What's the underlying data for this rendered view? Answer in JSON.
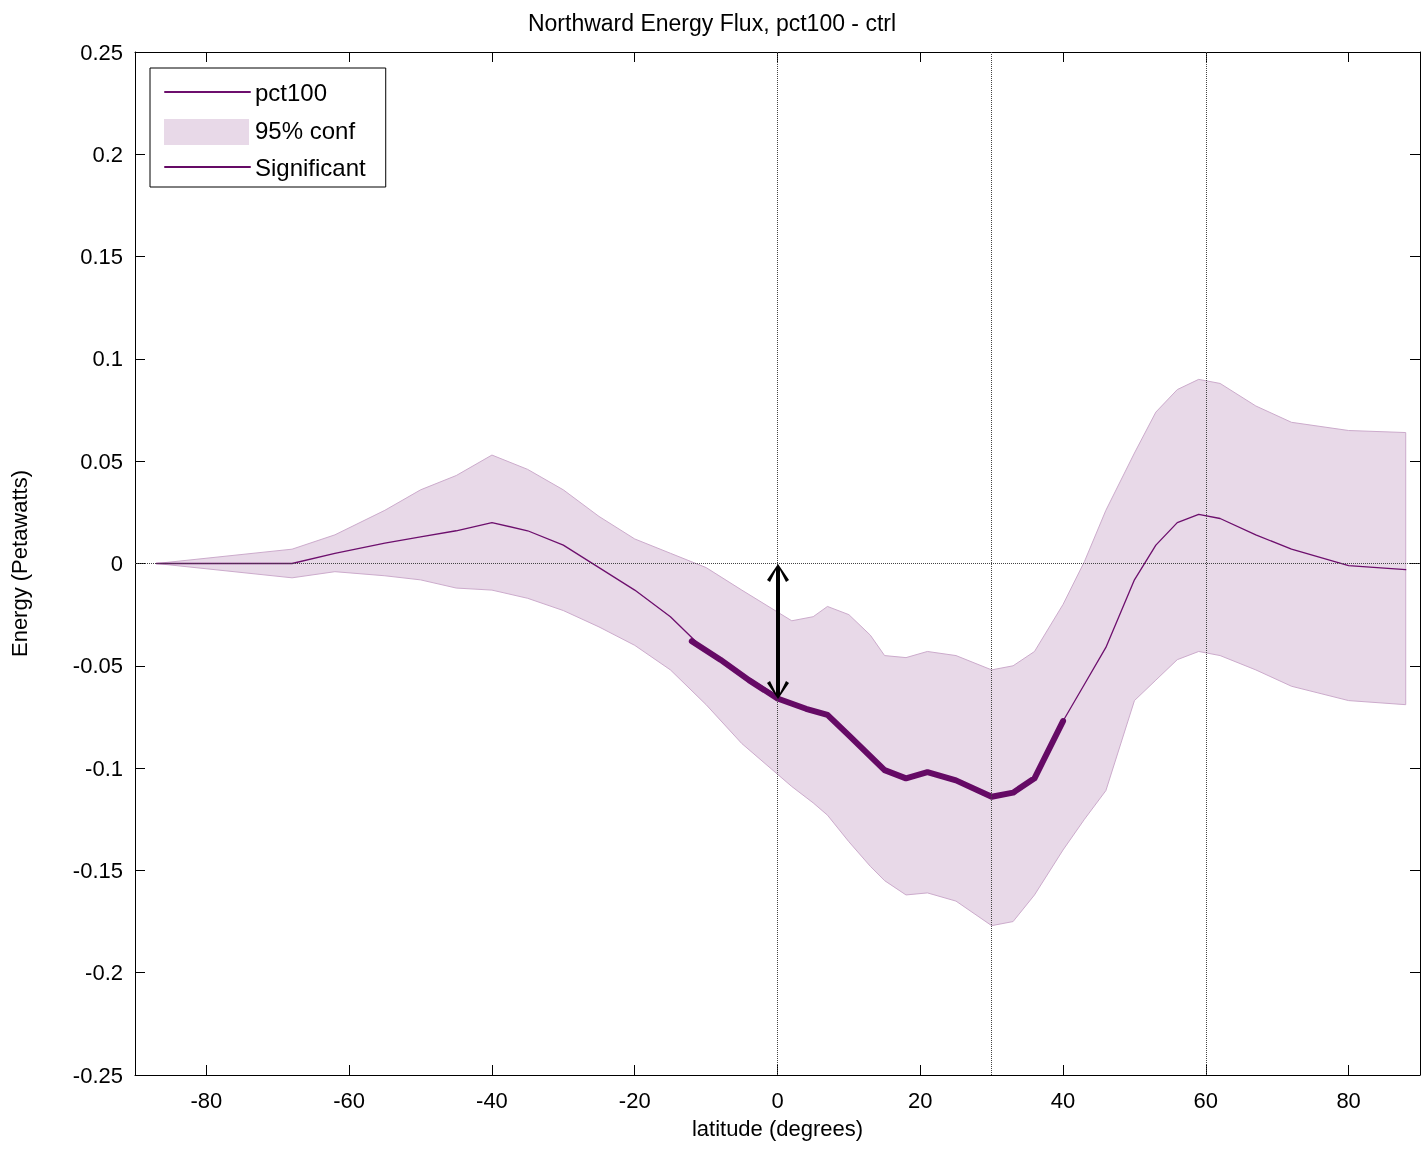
{
  "chart_data": {
    "type": "line",
    "title": "Northward Energy Flux, pct100 - ctrl",
    "xlabel": "latitude (degrees)",
    "ylabel": "Energy (Petawatts)",
    "annotations": [
      "95% conf"
    ],
    "xlim": [
      -90,
      90
    ],
    "xticks": [
      -80,
      -60,
      -40,
      -20,
      0,
      20,
      40,
      60,
      80
    ],
    "ylim": [
      -0.25,
      0.25
    ],
    "yticks": [
      -0.25,
      -0.2,
      -0.15,
      -0.1,
      -0.05,
      0,
      0.05,
      0.1,
      0.15,
      0.2,
      0.25
    ],
    "legend": "top left",
    "marker": "none",
    "line_style": "solid",
    "series": [
      {
        "name": "pct100",
        "type": "line",
        "color": "#6d0f6d",
        "x": [
          -87,
          -68,
          -62,
          -55,
          -50,
          -45,
          -40,
          -35,
          -30,
          -25,
          -20,
          -15,
          -10,
          -5,
          2,
          5,
          7,
          10,
          13,
          15,
          18,
          21,
          25,
          30,
          33,
          36,
          40,
          43,
          46,
          50,
          53,
          56,
          59,
          62,
          67,
          72,
          80,
          88
        ],
        "values": [
          0,
          0,
          0.005,
          0.01,
          0.013,
          0.016,
          0.02,
          0.016,
          0.009,
          -0.002,
          -0.013,
          -0.026,
          -0.043,
          -0.054,
          -0.069,
          -0.072,
          -0.074,
          -0.084,
          -0.094,
          -0.101,
          -0.105,
          -0.102,
          -0.106,
          -0.114,
          -0.112,
          -0.105,
          -0.077,
          -0.059,
          -0.041,
          -0.008,
          0.009,
          0.02,
          0.024,
          0.022,
          0.014,
          0.007,
          -0.001,
          -0.003
        ],
        "upper": [
          0,
          0.007,
          0.014,
          0.026,
          0.036,
          0.043,
          0.053,
          0.046,
          0.036,
          0.023,
          0.012,
          0.005,
          -0.002,
          -0.013,
          -0.028,
          -0.026,
          -0.021,
          -0.025,
          -0.035,
          -0.045,
          -0.046,
          -0.043,
          -0.045,
          -0.052,
          -0.05,
          -0.043,
          -0.02,
          0.001,
          0.026,
          0.054,
          0.074,
          0.085,
          0.09,
          0.088,
          0.077,
          0.069,
          0.065,
          0.064
        ],
        "lower": [
          0,
          -0.007,
          -0.004,
          -0.006,
          -0.008,
          -0.012,
          -0.013,
          -0.017,
          -0.023,
          -0.031,
          -0.04,
          -0.052,
          -0.069,
          -0.088,
          -0.109,
          -0.117,
          -0.123,
          -0.136,
          -0.148,
          -0.155,
          -0.162,
          -0.161,
          -0.165,
          -0.177,
          -0.175,
          -0.162,
          -0.14,
          -0.125,
          -0.111,
          -0.067,
          -0.057,
          -0.047,
          -0.043,
          -0.045,
          -0.052,
          -0.06,
          -0.067,
          -0.069
        ]
      },
      {
        "name": "Significant",
        "type": "line",
        "color": "#650a65",
        "x": [
          -12,
          -8,
          -4,
          0,
          4,
          7,
          10,
          15,
          18,
          21,
          25,
          30,
          33,
          36,
          40
        ],
        "values": [
          -0.038,
          -0.047,
          -0.057,
          -0.066,
          -0.071,
          -0.074,
          -0.084,
          -0.101,
          -0.105,
          -0.102,
          -0.106,
          -0.114,
          -0.112,
          -0.105,
          -0.077
        ]
      }
    ],
    "ref_lines": [
      {
        "axis": "x",
        "value": 0,
        "line_style": "dotted"
      },
      {
        "axis": "x",
        "value": 30,
        "line_style": "dotted"
      },
      {
        "axis": "x",
        "value": 60,
        "line_style": "dotted"
      },
      {
        "axis": "y",
        "value": 0,
        "line_style": "dotted"
      }
    ]
  }
}
